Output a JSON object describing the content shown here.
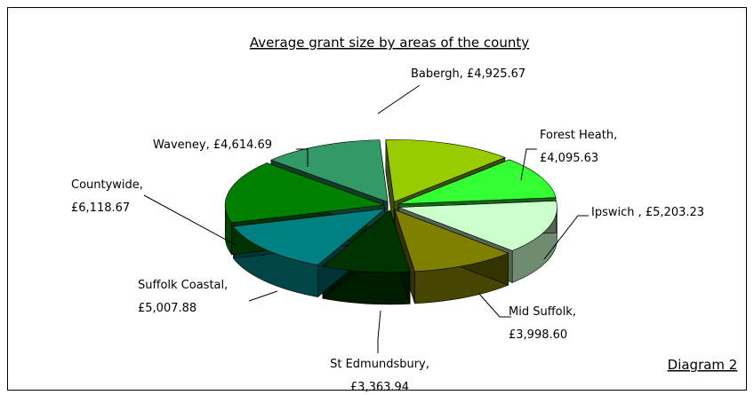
{
  "chart_data": {
    "type": "pie3d",
    "title": "Average grant size by areas of the county",
    "annotation": "Diagram 2",
    "values": [
      4925.67,
      4095.63,
      5203.23,
      3998.6,
      3363.94,
      5007.88,
      6118.67,
      4614.69
    ],
    "value_labels": [
      "Babergh, £4,925.67",
      "Forest Heath,\n£4,095.63",
      "Ipswich , £5,203.23",
      "Mid Suffolk,\n£3,998.60",
      "St Edmundsbury,\n£3,363.94",
      "Suffolk Coastal,\n£5,007.88",
      "Countywide,\n£6,118.67",
      "Waveney, £4,614.69"
    ],
    "colors": [
      "#99cc00",
      "#33ff33",
      "#ccffcc",
      "#808000",
      "#003300",
      "#008080",
      "#008000",
      "#339966"
    ]
  }
}
